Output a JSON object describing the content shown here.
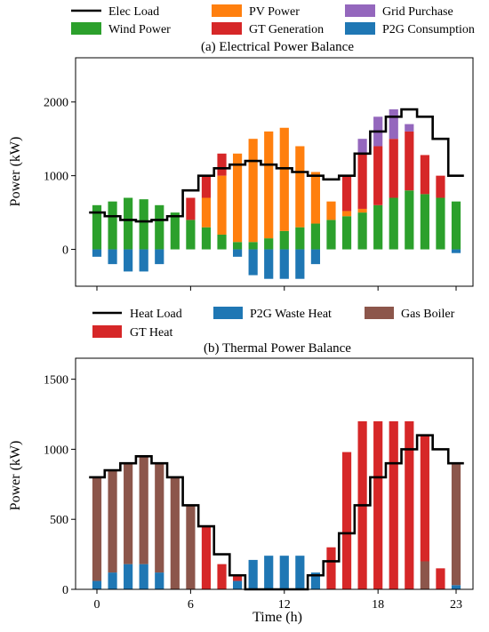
{
  "chart_data": [
    {
      "type": "bar",
      "title": "(a) Electrical Power Balance",
      "ylabel": "Power (kW)",
      "xlabel": "",
      "ylim": [
        -500,
        2600
      ],
      "yticks": [
        0,
        1000,
        2000
      ],
      "xticks": [
        0,
        6,
        12,
        18,
        23
      ],
      "xticklabels_visible": false,
      "grid": false,
      "stacked": true,
      "legend_placement": "above-plot, 3 columns",
      "x": [
        0,
        1,
        2,
        3,
        4,
        5,
        6,
        7,
        8,
        9,
        10,
        11,
        12,
        13,
        14,
        15,
        16,
        17,
        18,
        19,
        20,
        21,
        22,
        23
      ],
      "line": {
        "name": "Elec Load",
        "color": "#000000",
        "values": [
          500,
          450,
          400,
          380,
          400,
          450,
          800,
          1000,
          1100,
          1150,
          1200,
          1150,
          1100,
          1050,
          1000,
          950,
          1000,
          1300,
          1600,
          1800,
          1900,
          1800,
          1500,
          1000
        ]
      },
      "series": [
        {
          "name": "Wind Power",
          "color": "#2ca02c",
          "values": [
            600,
            650,
            700,
            680,
            600,
            500,
            400,
            300,
            200,
            100,
            100,
            150,
            250,
            300,
            350,
            400,
            450,
            500,
            600,
            700,
            800,
            750,
            700,
            650
          ]
        },
        {
          "name": "PV Power",
          "color": "#ff7f0e",
          "values": [
            0,
            0,
            0,
            0,
            0,
            0,
            0,
            400,
            800,
            1200,
            1400,
            1450,
            1400,
            1100,
            700,
            250,
            70,
            50,
            0,
            0,
            0,
            0,
            0,
            0
          ]
        },
        {
          "name": "GT Generation",
          "color": "#d62728",
          "values": [
            0,
            0,
            0,
            0,
            0,
            0,
            300,
            300,
            300,
            0,
            0,
            0,
            0,
            0,
            0,
            0,
            480,
            750,
            800,
            800,
            800,
            530,
            300,
            0
          ]
        },
        {
          "name": "Grid Purchase",
          "color": "#9467bd",
          "values": [
            0,
            0,
            0,
            0,
            0,
            0,
            0,
            0,
            0,
            0,
            0,
            0,
            0,
            0,
            0,
            0,
            0,
            200,
            400,
            400,
            100,
            0,
            0,
            0
          ]
        },
        {
          "name": "P2G Consumption",
          "color": "#1f77b4",
          "values": [
            -100,
            -200,
            -300,
            -300,
            -200,
            0,
            0,
            0,
            0,
            -100,
            -350,
            -400,
            -400,
            -400,
            -200,
            0,
            0,
            0,
            0,
            0,
            0,
            0,
            0,
            -50
          ]
        }
      ]
    },
    {
      "type": "bar",
      "title": "(b) Thermal Power Balance",
      "ylabel": "Power (kW)",
      "xlabel": "Time (h)",
      "ylim": [
        0,
        1650
      ],
      "yticks": [
        0,
        500,
        1000,
        1500
      ],
      "xticks": [
        0,
        6,
        12,
        18,
        23
      ],
      "grid": false,
      "stacked": true,
      "legend_placement": "above-plot, 3 columns",
      "x": [
        0,
        1,
        2,
        3,
        4,
        5,
        6,
        7,
        8,
        9,
        10,
        11,
        12,
        13,
        14,
        15,
        16,
        17,
        18,
        19,
        20,
        21,
        22,
        23
      ],
      "line": {
        "name": "Heat Load",
        "color": "#000000",
        "values": [
          800,
          850,
          900,
          950,
          900,
          800,
          600,
          450,
          250,
          100,
          0,
          0,
          0,
          0,
          100,
          200,
          400,
          600,
          800,
          900,
          1000,
          1100,
          1000,
          900
        ]
      },
      "series": [
        {
          "name": "P2G Waste Heat",
          "color": "#1f77b4",
          "values": [
            60,
            120,
            180,
            180,
            120,
            0,
            0,
            0,
            0,
            60,
            210,
            240,
            240,
            240,
            120,
            0,
            0,
            0,
            0,
            0,
            0,
            0,
            0,
            30
          ]
        },
        {
          "name": "Gas Boiler",
          "color": "#8c564b",
          "values": [
            740,
            730,
            720,
            770,
            780,
            800,
            600,
            0,
            0,
            0,
            0,
            0,
            0,
            0,
            0,
            0,
            0,
            0,
            0,
            0,
            0,
            200,
            0,
            870
          ]
        },
        {
          "name": "GT Heat",
          "color": "#d62728",
          "values": [
            0,
            0,
            0,
            0,
            0,
            0,
            0,
            450,
            180,
            40,
            0,
            0,
            0,
            0,
            0,
            300,
            980,
            1200,
            1200,
            1200,
            1200,
            900,
            150,
            0
          ]
        }
      ]
    }
  ],
  "legends": {
    "a": {
      "elec_load": "Elec Load",
      "wind_power": "Wind Power",
      "pv_power": "PV Power",
      "gt_generation": "GT Generation",
      "grid_purchase": "Grid Purchase",
      "p2g_consumption": "P2G Consumption"
    },
    "b": {
      "heat_load": "Heat Load",
      "gt_heat": "GT Heat",
      "p2g_waste_heat": "P2G Waste Heat",
      "gas_boiler": "Gas Boiler"
    }
  }
}
